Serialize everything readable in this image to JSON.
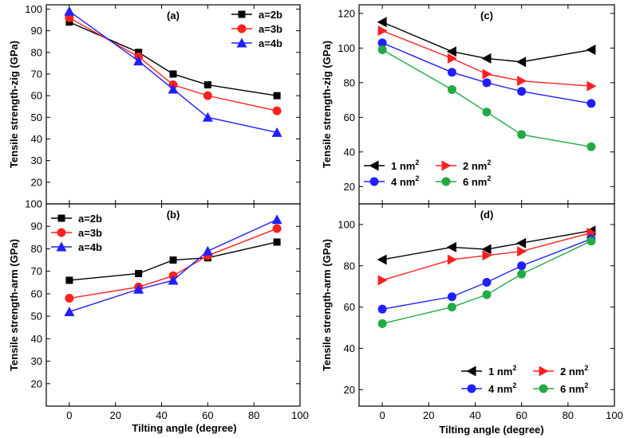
{
  "figure": {
    "xlabel_left": "Tilting angle (degree)",
    "xlabel_right": "Tilting angle (degree)"
  },
  "chart_data": [
    {
      "panel": "(a)",
      "type": "line",
      "ylabel": "Tensile strength-zig (GPa)",
      "xlabel": "",
      "xlim": [
        -10,
        100
      ],
      "ylim": [
        10,
        102
      ],
      "xticks": [
        0,
        20,
        40,
        60,
        80,
        100
      ],
      "yticks": [
        20,
        30,
        40,
        50,
        60,
        70,
        80,
        90,
        100
      ],
      "show_xtick_labels": false,
      "legend_position": "top-right",
      "legend_columns": 1,
      "series": [
        {
          "name": "a=2b",
          "color": "#000000",
          "marker": "square",
          "x": [
            0,
            30,
            45,
            60,
            90
          ],
          "y": [
            94,
            80,
            70,
            65,
            60
          ]
        },
        {
          "name": "a=3b",
          "color": "#ff2020",
          "marker": "circle",
          "x": [
            0,
            30,
            45,
            60,
            90
          ],
          "y": [
            96,
            78,
            65,
            60,
            53
          ]
        },
        {
          "name": "a=4b",
          "color": "#2020ff",
          "marker": "triangle-up",
          "x": [
            0,
            30,
            45,
            60,
            90
          ],
          "y": [
            99,
            76,
            63,
            50,
            43
          ]
        }
      ]
    },
    {
      "panel": "(b)",
      "type": "line",
      "ylabel": "Tensile strength-arm (GPa)",
      "xlabel": "Tilting angle (degree)",
      "xlim": [
        -10,
        100
      ],
      "ylim": [
        10,
        100
      ],
      "xticks": [
        0,
        20,
        40,
        60,
        80,
        100
      ],
      "yticks": [
        20,
        30,
        40,
        50,
        60,
        70,
        80,
        90,
        100
      ],
      "show_xtick_labels": true,
      "legend_position": "top-left",
      "legend_columns": 1,
      "series": [
        {
          "name": "a=2b",
          "color": "#000000",
          "marker": "square",
          "x": [
            0,
            30,
            45,
            60,
            90
          ],
          "y": [
            66,
            69,
            75,
            76,
            83
          ]
        },
        {
          "name": "a=3b",
          "color": "#ff2020",
          "marker": "circle",
          "x": [
            0,
            30,
            45,
            60,
            90
          ],
          "y": [
            58,
            63,
            68,
            77,
            89
          ]
        },
        {
          "name": "a=4b",
          "color": "#2020ff",
          "marker": "triangle-up",
          "x": [
            0,
            30,
            45,
            60,
            90
          ],
          "y": [
            52,
            62,
            66,
            79,
            93
          ]
        }
      ]
    },
    {
      "panel": "(c)",
      "type": "line",
      "ylabel": "Tensile strength-zig (GPa)",
      "xlabel": "",
      "xlim": [
        -10,
        100
      ],
      "ylim": [
        10,
        125
      ],
      "xticks": [
        0,
        20,
        40,
        60,
        80,
        100
      ],
      "yticks": [
        20,
        40,
        60,
        80,
        100,
        120
      ],
      "show_xtick_labels": false,
      "legend_position": "bottom-left",
      "legend_columns": 2,
      "series": [
        {
          "name": "1 nm",
          "name_sup": "2",
          "color": "#000000",
          "marker": "triangle-left",
          "x": [
            0,
            30,
            45,
            60,
            90
          ],
          "y": [
            115,
            98,
            94,
            92,
            99
          ]
        },
        {
          "name": "2 nm",
          "name_sup": "2",
          "color": "#ff2020",
          "marker": "triangle-right",
          "x": [
            0,
            30,
            45,
            60,
            90
          ],
          "y": [
            110,
            94,
            85,
            81,
            78
          ]
        },
        {
          "name": "4 nm",
          "name_sup": "2",
          "color": "#2020ff",
          "marker": "circle",
          "x": [
            0,
            30,
            45,
            60,
            90
          ],
          "y": [
            103,
            86,
            80,
            75,
            68
          ]
        },
        {
          "name": "6 nm",
          "name_sup": "2",
          "color": "#22aa44",
          "marker": "circle",
          "x": [
            0,
            30,
            45,
            60,
            90
          ],
          "y": [
            99,
            76,
            63,
            50,
            43
          ]
        }
      ]
    },
    {
      "panel": "(d)",
      "type": "line",
      "ylabel": "Tensile strength-arm (GPa)",
      "xlabel": "Tilting angle (degree)",
      "xlim": [
        -10,
        100
      ],
      "ylim": [
        12,
        110
      ],
      "xticks": [
        0,
        20,
        40,
        60,
        80,
        100
      ],
      "yticks": [
        20,
        40,
        60,
        80,
        100
      ],
      "show_xtick_labels": true,
      "legend_position": "bottom-right",
      "legend_columns": 2,
      "series": [
        {
          "name": "1 nm",
          "name_sup": "2",
          "color": "#000000",
          "marker": "triangle-left",
          "x": [
            0,
            30,
            45,
            60,
            90
          ],
          "y": [
            83,
            89,
            88,
            91,
            97
          ]
        },
        {
          "name": "2 nm",
          "name_sup": "2",
          "color": "#ff2020",
          "marker": "triangle-right",
          "x": [
            0,
            30,
            45,
            60,
            90
          ],
          "y": [
            73,
            83,
            85,
            87,
            96
          ]
        },
        {
          "name": "4 nm",
          "name_sup": "2",
          "color": "#2020ff",
          "marker": "circle",
          "x": [
            0,
            30,
            45,
            60,
            90
          ],
          "y": [
            59,
            65,
            72,
            80,
            93
          ]
        },
        {
          "name": "6 nm",
          "name_sup": "2",
          "color": "#22aa44",
          "marker": "circle",
          "x": [
            0,
            30,
            45,
            60,
            90
          ],
          "y": [
            52,
            60,
            66,
            76,
            92
          ]
        }
      ]
    }
  ]
}
